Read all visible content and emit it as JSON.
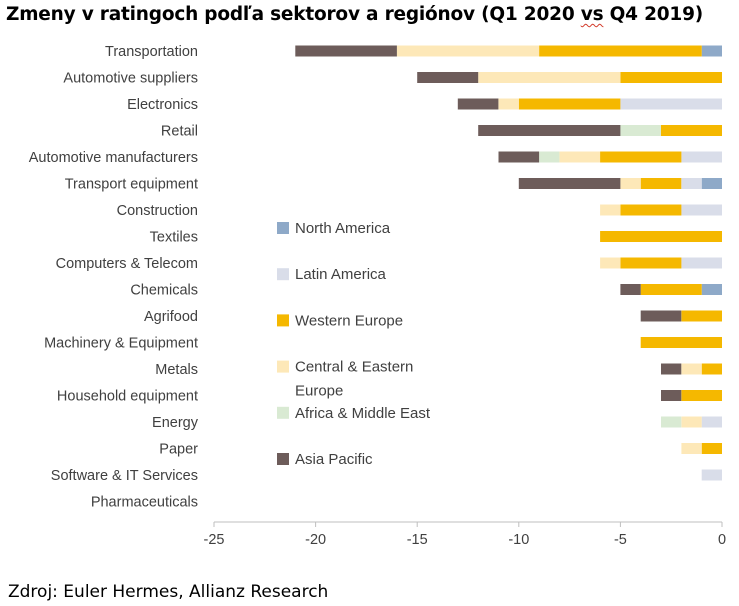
{
  "title": {
    "prefix": "Zmeny v ratingoch podľa sektorov a regiónov (Q1 2020 ",
    "vs": "vs",
    "suffix": " Q4 2019)"
  },
  "source": "Zdroj: Euler Hermes, Allianz Research",
  "chart_data": {
    "type": "bar",
    "orientation": "horizontal",
    "stacked": true,
    "title": "Zmeny v ratingoch podľa sektorov a regiónov (Q1 2020 vs Q4 2019)",
    "xlim": [
      -25,
      0
    ],
    "x_ticks": [
      -25,
      -20,
      -15,
      -10,
      -5,
      0
    ],
    "grid": false,
    "legend_position": "center",
    "categories": [
      "Transportation",
      "Automotive suppliers",
      "Electronics",
      "Retail",
      "Automotive manufacturers",
      "Transport equipment",
      "Construction",
      "Textiles",
      "Computers & Telecom",
      "Chemicals",
      "Agrifood",
      "Machinery & Equipment",
      "Metals",
      "Household equipment",
      "Energy",
      "Paper",
      "Software & IT Services",
      "Pharmaceuticals"
    ],
    "series": [
      {
        "name": "North America",
        "color": "#8ea9c8",
        "values": [
          -1,
          0,
          0,
          0,
          0,
          -1,
          0,
          0,
          0,
          -1,
          0,
          0,
          0,
          0,
          0,
          0,
          0,
          0
        ]
      },
      {
        "name": "Latin America",
        "color": "#d9dde9",
        "values": [
          0,
          0,
          -5,
          0,
          -2,
          -1,
          -2,
          0,
          -2,
          0,
          0,
          0,
          0,
          0,
          -1,
          0,
          -1,
          0
        ]
      },
      {
        "name": "Western Europe",
        "color": "#f5b800",
        "values": [
          -8,
          -5,
          -5,
          -3,
          -4,
          -2,
          -3,
          -6,
          -3,
          -3,
          -2,
          -4,
          -1,
          -2,
          0,
          -1,
          0,
          0
        ]
      },
      {
        "name": "Central & Eastern Europe",
        "legend_lines": [
          "Central & Eastern",
          "Europe"
        ],
        "color": "#fde8b8",
        "values": [
          -7,
          -7,
          -1,
          0,
          -2,
          -1,
          -1,
          0,
          -1,
          0,
          0,
          0,
          -1,
          0,
          -1,
          -1,
          0,
          0
        ]
      },
      {
        "name": "Africa & Middle East",
        "color": "#d9ead3",
        "values": [
          0,
          0,
          0,
          -2,
          -1,
          0,
          0,
          0,
          0,
          0,
          0,
          0,
          0,
          0,
          -1,
          0,
          0,
          0
        ]
      },
      {
        "name": "Asia Pacific",
        "color": "#6d5c5a",
        "values": [
          -5,
          -3,
          -2,
          -7,
          -2,
          -5,
          0,
          0,
          0,
          -1,
          -2,
          0,
          -1,
          -1,
          0,
          0,
          0,
          0
        ]
      }
    ]
  }
}
